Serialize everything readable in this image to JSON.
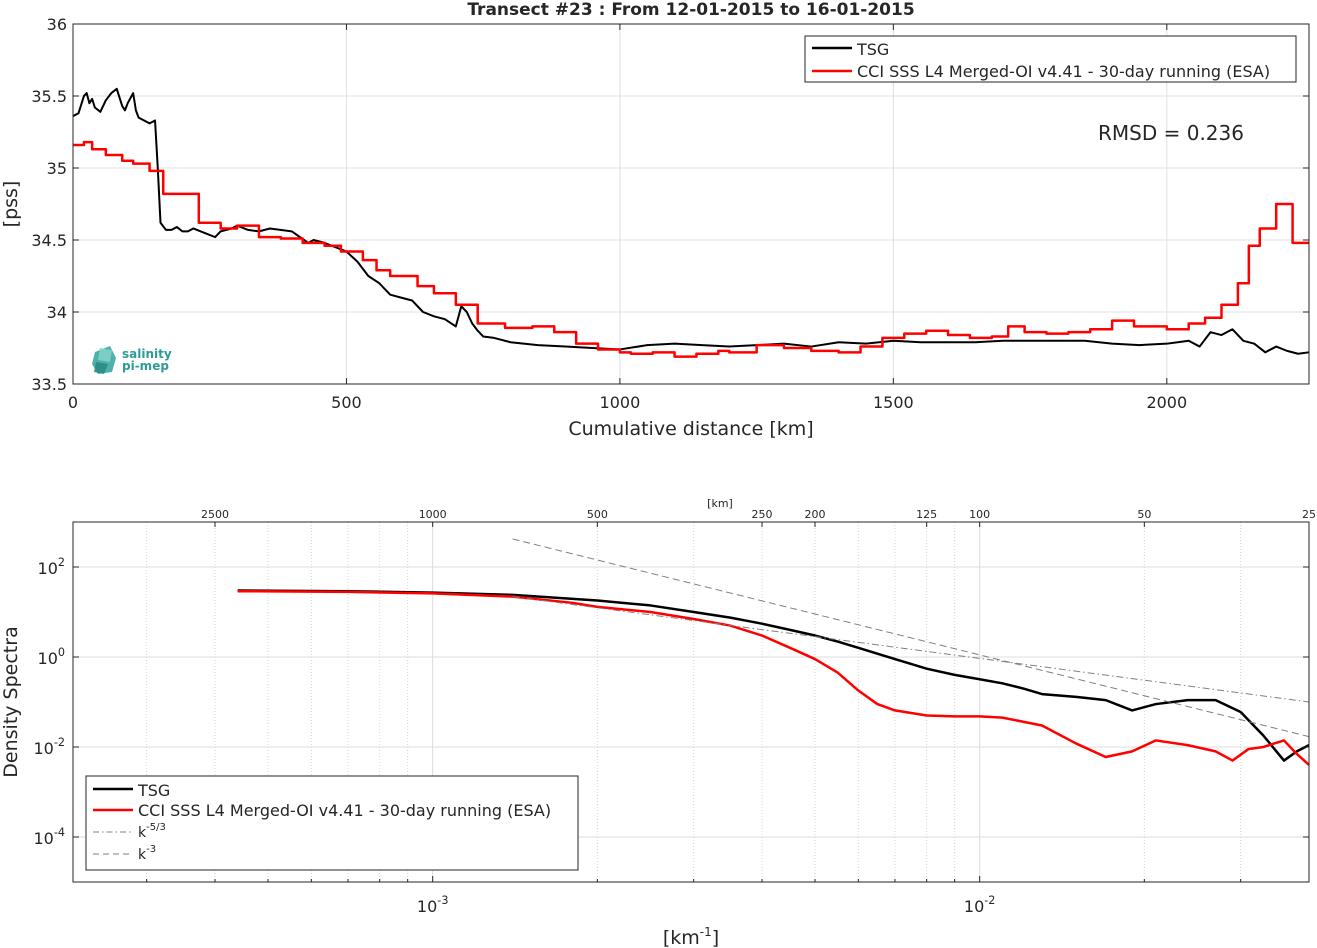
{
  "chart_data": [
    {
      "type": "line",
      "title": "Transect #23 : From 12-01-2015 to 16-01-2015",
      "xlabel": "Cumulative distance [km]",
      "ylabel": "[pss]",
      "xlim": [
        0,
        2260
      ],
      "ylim": [
        33.5,
        36
      ],
      "xticks": [
        0,
        500,
        1000,
        1500,
        2000
      ],
      "yticks": [
        33.5,
        34,
        34.5,
        35,
        35.5,
        36
      ],
      "grid": true,
      "legend": "top-right",
      "annotation": "RMSD = 0.236",
      "logo": {
        "line1": "salinity",
        "line2": "pi-mep"
      },
      "series": [
        {
          "name": "TSG",
          "color": "#000000",
          "style": "smooth",
          "x": [
            0,
            10,
            20,
            25,
            30,
            35,
            40,
            50,
            60,
            70,
            80,
            90,
            95,
            100,
            110,
            115,
            120,
            130,
            140,
            150,
            155,
            160,
            170,
            180,
            190,
            200,
            210,
            220,
            240,
            260,
            270,
            290,
            300,
            320,
            340,
            360,
            400,
            430,
            440,
            460,
            480,
            500,
            520,
            540,
            560,
            580,
            600,
            620,
            640,
            660,
            680,
            700,
            710,
            720,
            730,
            740,
            750,
            770,
            800,
            850,
            900,
            950,
            1000,
            1050,
            1100,
            1150,
            1200,
            1250,
            1300,
            1350,
            1400,
            1450,
            1500,
            1550,
            1600,
            1650,
            1700,
            1750,
            1800,
            1850,
            1900,
            1950,
            2000,
            2020,
            2040,
            2060,
            2080,
            2100,
            2120,
            2140,
            2160,
            2180,
            2200,
            2220,
            2240,
            2260
          ],
          "y": [
            35.36,
            35.38,
            35.5,
            35.52,
            35.45,
            35.48,
            35.42,
            35.39,
            35.47,
            35.52,
            35.55,
            35.43,
            35.4,
            35.45,
            35.52,
            35.4,
            35.35,
            35.33,
            35.31,
            35.33,
            35.0,
            34.62,
            34.57,
            34.57,
            34.59,
            34.56,
            34.56,
            34.58,
            34.55,
            34.52,
            34.56,
            34.58,
            34.6,
            34.57,
            34.56,
            34.58,
            34.56,
            34.48,
            34.5,
            34.48,
            34.45,
            34.42,
            34.35,
            34.25,
            34.2,
            34.12,
            34.1,
            34.08,
            34.0,
            33.97,
            33.95,
            33.9,
            34.04,
            34.0,
            33.92,
            33.87,
            33.83,
            33.82,
            33.79,
            33.77,
            33.76,
            33.75,
            33.74,
            33.77,
            33.78,
            33.77,
            33.76,
            33.77,
            33.78,
            33.76,
            33.79,
            33.78,
            33.8,
            33.79,
            33.79,
            33.79,
            33.8,
            33.8,
            33.8,
            33.8,
            33.78,
            33.77,
            33.78,
            33.79,
            33.8,
            33.76,
            33.86,
            33.84,
            33.88,
            33.8,
            33.78,
            33.72,
            33.76,
            33.73,
            33.71,
            33.72
          ]
        },
        {
          "name": "CCI SSS L4 Merged-OI v4.41 - 30-day running (ESA)",
          "color": "#ff0000",
          "style": "step",
          "x": [
            0,
            20,
            35,
            60,
            90,
            110,
            140,
            165,
            200,
            230,
            270,
            300,
            340,
            380,
            420,
            460,
            490,
            530,
            555,
            580,
            630,
            660,
            700,
            740,
            790,
            840,
            880,
            920,
            960,
            1000,
            1020,
            1060,
            1100,
            1140,
            1180,
            1200,
            1250,
            1300,
            1350,
            1400,
            1440,
            1480,
            1520,
            1560,
            1600,
            1640,
            1680,
            1710,
            1740,
            1780,
            1820,
            1860,
            1900,
            1940,
            2000,
            2040,
            2070,
            2100,
            2130,
            2150,
            2170,
            2200,
            2230,
            2260
          ],
          "y": [
            35.16,
            35.18,
            35.13,
            35.09,
            35.05,
            35.03,
            34.98,
            34.82,
            34.82,
            34.62,
            34.58,
            34.6,
            34.52,
            34.51,
            34.48,
            34.46,
            34.42,
            34.36,
            34.29,
            34.25,
            34.18,
            34.13,
            34.05,
            33.92,
            33.89,
            33.9,
            33.86,
            33.78,
            33.74,
            33.72,
            33.71,
            33.72,
            33.69,
            33.71,
            33.73,
            33.72,
            33.77,
            33.75,
            33.73,
            33.72,
            33.76,
            33.82,
            33.85,
            33.87,
            33.84,
            33.82,
            33.83,
            33.9,
            33.86,
            33.85,
            33.86,
            33.88,
            33.94,
            33.9,
            33.88,
            33.92,
            33.96,
            34.05,
            34.2,
            34.46,
            34.58,
            34.75,
            34.48,
            34.48
          ]
        }
      ]
    },
    {
      "type": "line",
      "title": "",
      "xlabel": "[km^-1]",
      "ylabel": "Density Spectra",
      "xscale": "log",
      "yscale": "log",
      "xlim": [
        0.00022,
        0.04
      ],
      "ylim": [
        1e-05,
        1000
      ],
      "xticks": [
        0.001,
        0.01
      ],
      "xtick_labels": [
        "10^-3",
        "10^-2"
      ],
      "yticks": [
        0.0001,
        0.01,
        1,
        100
      ],
      "ytick_labels": [
        "10^-4",
        "10^-2",
        "10^0",
        "10^2"
      ],
      "top_axis_label": "[km]",
      "top_ticks": [
        2500,
        1000,
        500,
        250,
        200,
        125,
        100,
        50,
        25
      ],
      "grid": true,
      "legend": "bottom-left",
      "series": [
        {
          "name": "TSG",
          "color": "#000000",
          "style": "solid",
          "x": [
            0.00044,
            0.0007,
            0.001,
            0.0014,
            0.002,
            0.0025,
            0.003,
            0.0035,
            0.004,
            0.0045,
            0.005,
            0.0055,
            0.006,
            0.007,
            0.008,
            0.009,
            0.01,
            0.011,
            0.012,
            0.013,
            0.015,
            0.017,
            0.019,
            0.021,
            0.024,
            0.027,
            0.03,
            0.033,
            0.036,
            0.038,
            0.04
          ],
          "y": [
            30,
            29,
            27,
            24,
            18,
            14,
            10,
            7.5,
            5.5,
            4,
            3,
            2.2,
            1.6,
            0.9,
            0.55,
            0.4,
            0.32,
            0.26,
            0.2,
            0.15,
            0.13,
            0.11,
            0.065,
            0.09,
            0.11,
            0.11,
            0.06,
            0.018,
            0.005,
            0.008,
            0.011
          ]
        },
        {
          "name": "CCI SSS L4 Merged-OI v4.41 - 30-day running (ESA)",
          "color": "#ff0000",
          "style": "solid",
          "x": [
            0.00044,
            0.0007,
            0.001,
            0.0014,
            0.0018,
            0.002,
            0.0025,
            0.003,
            0.0035,
            0.004,
            0.0045,
            0.005,
            0.0055,
            0.006,
            0.0065,
            0.007,
            0.008,
            0.009,
            0.01,
            0.011,
            0.013,
            0.015,
            0.017,
            0.019,
            0.021,
            0.024,
            0.027,
            0.029,
            0.031,
            0.033,
            0.036,
            0.038,
            0.04
          ],
          "y": [
            29,
            28,
            26,
            22,
            16,
            13,
            10,
            7,
            5,
            3,
            1.6,
            0.9,
            0.45,
            0.18,
            0.09,
            0.065,
            0.05,
            0.048,
            0.048,
            0.045,
            0.03,
            0.012,
            0.006,
            0.008,
            0.014,
            0.011,
            0.008,
            0.005,
            0.009,
            0.01,
            0.014,
            0.007,
            0.004
          ]
        },
        {
          "name": "k^-5/3",
          "color": "#808080",
          "style": "dashdot",
          "x": [
            0.0014,
            0.04
          ],
          "y": [
            22,
            0.1
          ]
        },
        {
          "name": "k^-3",
          "color": "#808080",
          "style": "dashed",
          "x": [
            0.0014,
            0.04
          ],
          "y": [
            420,
            0.017
          ]
        }
      ]
    }
  ]
}
